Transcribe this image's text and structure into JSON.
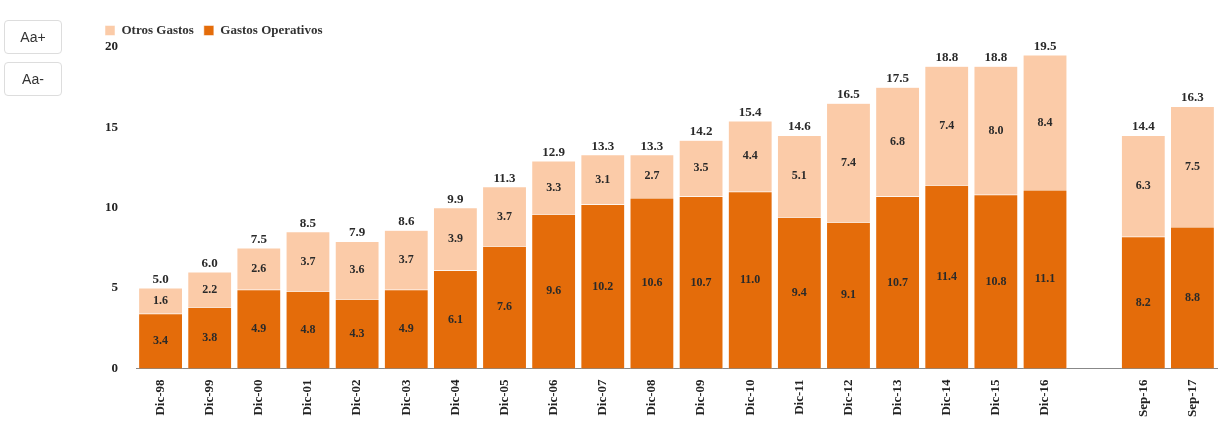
{
  "chart_data": {
    "type": "bar",
    "stacked": true,
    "categories": [
      "Dic-98",
      "Dic-99",
      "Dic-00",
      "Dic-01",
      "Dic-02",
      "Dic-03",
      "Dic-04",
      "Dic-05",
      "Dic-06",
      "Dic-07",
      "Dic-08",
      "Dic-09",
      "Dic-10",
      "Dic-11",
      "Dic-12",
      "Dic-13",
      "Dic-14",
      "Dic-15",
      "Dic-16",
      null,
      "Sep-16",
      "Sep-17"
    ],
    "series": [
      {
        "name": "Gastos Operativos",
        "color": "#e46c0a",
        "values": [
          3.4,
          3.8,
          4.9,
          4.8,
          4.3,
          4.9,
          6.1,
          7.6,
          9.6,
          10.2,
          10.6,
          10.7,
          11.0,
          9.4,
          9.1,
          10.7,
          11.4,
          10.8,
          11.1,
          null,
          8.2,
          8.8
        ],
        "value_labels": [
          "3.4",
          "3.8",
          "4.9",
          "4.8",
          "4.3",
          "4.9",
          "6.1",
          "7.6",
          "9.6",
          "10.2",
          "10.6",
          "10.7",
          "11.0",
          "9.4",
          "9.1",
          "10.7",
          "11.4",
          "10.8",
          "11.1",
          null,
          "8.2",
          "8.8"
        ]
      },
      {
        "name": "Otros Gastos",
        "color": "#fbcba8",
        "values": [
          1.6,
          2.2,
          2.6,
          3.7,
          3.6,
          3.7,
          3.9,
          3.7,
          3.3,
          3.1,
          2.7,
          3.5,
          4.4,
          5.1,
          7.4,
          6.8,
          7.4,
          8.0,
          8.4,
          null,
          6.3,
          7.5
        ],
        "value_labels": [
          "1.6",
          "2.2",
          "2.6",
          "3.7",
          "3.6",
          "3.7",
          "3.9",
          "3.7",
          "3.3",
          "3.1",
          "2.7",
          "3.5",
          "4.4",
          "5.1",
          "7.4",
          "6.8",
          "7.4",
          "8.0",
          "8.4",
          null,
          "6.3",
          "7.5"
        ]
      }
    ],
    "totals": [
      "5.0",
      "6.0",
      "7.5",
      "8.5",
      "7.9",
      "8.6",
      "9.9",
      "11.3",
      "12.9",
      "13.3",
      "13.3",
      "14.2",
      "15.4",
      "14.6",
      "16.5",
      "17.5",
      "18.8",
      "18.8",
      "19.5",
      null,
      "14.4",
      "16.3"
    ],
    "ylim": [
      0,
      20
    ],
    "yticks": [
      0,
      5,
      10,
      15,
      20
    ],
    "grid": false,
    "legend": "top left",
    "annotations": [
      "Aa+",
      "Aa-"
    ]
  }
}
